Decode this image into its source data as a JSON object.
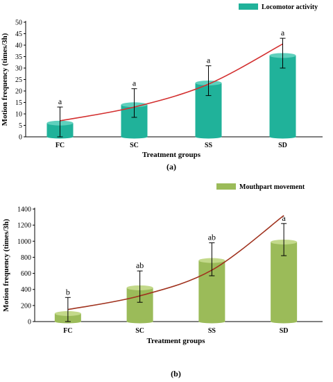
{
  "chart_data": [
    {
      "type": "bar",
      "panel_label": "(a)",
      "categories": [
        "FC",
        "SC",
        "SS",
        "SD"
      ],
      "series": [
        {
          "name": "Locomotor activity",
          "values": [
            6,
            14,
            23.5,
            35.5
          ]
        }
      ],
      "error_bars": [
        {
          "low": 0,
          "high": 13
        },
        {
          "low": 8.5,
          "high": 21
        },
        {
          "low": 18,
          "high": 31
        },
        {
          "low": 30,
          "high": 43
        }
      ],
      "significance_labels": [
        "a",
        "a",
        "a",
        "a"
      ],
      "trendline": {
        "type": "exponential",
        "values": [
          7,
          13,
          23,
          40.5
        ]
      },
      "xlabel": "Treatment groups",
      "ylabel": "Motion frequency (times/3h)",
      "ylim": [
        0,
        50
      ],
      "yticks": [
        0,
        5,
        10,
        15,
        20,
        25,
        30,
        35,
        40,
        45,
        50
      ],
      "legend_position": "top-right",
      "colors": {
        "bar": "#20b29a",
        "bar_top": "#5fd0bd",
        "trend": "#d32f2f"
      }
    },
    {
      "type": "bar",
      "panel_label": "(b)",
      "categories": [
        "FC",
        "SC",
        "SS",
        "SD"
      ],
      "series": [
        {
          "name": "Mouthpart movement",
          "values": [
            100,
            420,
            760,
            990
          ]
        }
      ],
      "error_bars": [
        {
          "low": 0,
          "high": 300
        },
        {
          "low": 240,
          "high": 630
        },
        {
          "low": 570,
          "high": 980
        },
        {
          "low": 820,
          "high": 1220
        }
      ],
      "significance_labels": [
        "b",
        "ab",
        "ab",
        "a"
      ],
      "trendline": {
        "type": "exponential",
        "values": [
          150,
          320,
          640,
          1320
        ]
      },
      "xlabel": "Treatment groups",
      "ylabel": "Motion frequency (times/3h)",
      "ylim": [
        0,
        1400
      ],
      "yticks": [
        0,
        200,
        400,
        600,
        800,
        1000,
        1200,
        1400
      ],
      "legend_position": "top-right",
      "colors": {
        "bar": "#9bbb59",
        "bar_top": "#c3d98a",
        "trend": "#a0321e"
      }
    }
  ]
}
